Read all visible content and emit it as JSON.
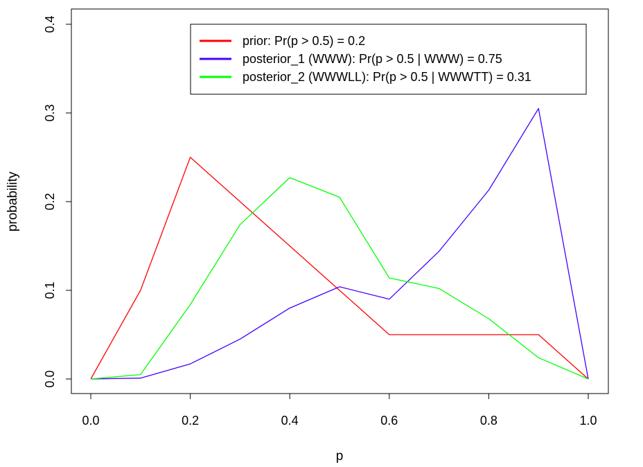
{
  "chart_data": {
    "type": "line",
    "title": "",
    "xlabel": "p",
    "ylabel": "probability",
    "xlim": [
      0,
      1
    ],
    "ylim": [
      0,
      0.4
    ],
    "x": [
      0.0,
      0.1,
      0.2,
      0.3,
      0.4,
      0.5,
      0.6,
      0.7,
      0.8,
      0.9,
      1.0
    ],
    "xticks": [
      "0.0",
      "0.2",
      "0.4",
      "0.6",
      "0.8",
      "1.0"
    ],
    "yticks": [
      "0.0",
      "0.1",
      "0.2",
      "0.3",
      "0.4"
    ],
    "grid": false,
    "legend_position": "top-right",
    "series": [
      {
        "name": "prior: Pr(p > 0.5) = 0.2",
        "color": "#ff0000",
        "values": [
          0.0,
          0.1,
          0.25,
          0.2,
          0.15,
          0.1,
          0.05,
          0.05,
          0.05,
          0.05,
          0.0
        ]
      },
      {
        "name": "posterior_1 (WWW): Pr(p > 0.5 | WWW) = 0.75",
        "color": "#4400ff",
        "values": [
          0.0,
          0.001,
          0.017,
          0.045,
          0.08,
          0.104,
          0.09,
          0.144,
          0.213,
          0.305,
          0.0
        ]
      },
      {
        "name": "posterior_2 (WWWLL): Pr(p > 0.5 | WWWTT) = 0.31",
        "color": "#00ff00",
        "values": [
          0.0,
          0.005,
          0.084,
          0.174,
          0.227,
          0.205,
          0.114,
          0.102,
          0.068,
          0.024,
          0.0
        ]
      }
    ]
  }
}
